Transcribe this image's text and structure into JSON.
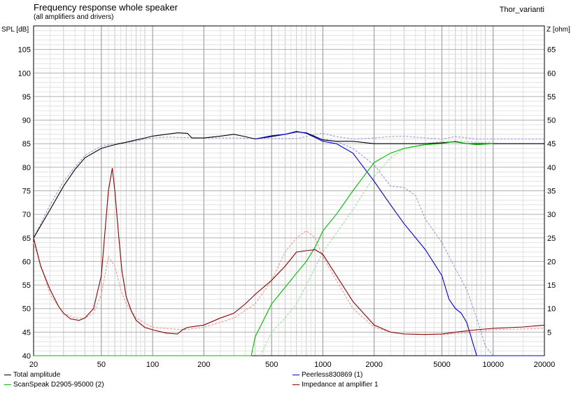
{
  "chart_data": {
    "type": "line",
    "title": "Frequency response whole speaker",
    "subtitle": "(all amplifiers and drivers)",
    "corner_label": "Thor_varianti",
    "x_scale": "log",
    "xlim": [
      20,
      20000
    ],
    "x_ticks": [
      20,
      50,
      100,
      200,
      500,
      1000,
      2000,
      5000,
      10000,
      20000
    ],
    "ylabel_left": "SPL [dB]",
    "ylim_left": [
      40,
      110
    ],
    "y_ticks_left": [
      40,
      45,
      50,
      55,
      60,
      65,
      70,
      75,
      80,
      85,
      90,
      95,
      100,
      105
    ],
    "ylabel_right": "Z [ohm]",
    "ylim_right": [
      0,
      70
    ],
    "y_ticks_right": [
      5,
      10,
      15,
      20,
      25,
      30,
      35,
      40,
      45,
      50,
      55,
      60,
      65
    ],
    "grid": true,
    "legend": [
      {
        "name": "Total amplitude",
        "color": "#000000"
      },
      {
        "name": "Peerless830869 (1)",
        "color": "#0000dd"
      },
      {
        "name": "ScanSpeak D2905-95000 (2)",
        "color": "#00bb00"
      },
      {
        "name": "Impedance at amplifier 1",
        "color": "#8b0000"
      }
    ],
    "series": [
      {
        "name": "Total amplitude",
        "axis": "left",
        "color": "#000000",
        "style": "solid",
        "x": [
          20,
          25,
          30,
          35,
          40,
          50,
          60,
          70,
          80,
          90,
          100,
          120,
          140,
          160,
          170,
          200,
          250,
          300,
          350,
          400,
          500,
          600,
          700,
          800,
          1000,
          1200,
          1500,
          2000,
          2500,
          3000,
          4000,
          5000,
          6000,
          7000,
          8000,
          10000,
          15000,
          20000
        ],
        "y": [
          65,
          71,
          76,
          79.5,
          82,
          84,
          84.8,
          85.3,
          85.8,
          86.2,
          86.6,
          87,
          87.3,
          87.2,
          86.2,
          86.2,
          86.6,
          87,
          86.5,
          86,
          86.5,
          87,
          87.5,
          87.3,
          85.8,
          85.5,
          85.5,
          85,
          85,
          85,
          85,
          85.2,
          85.4,
          85,
          85,
          85,
          85,
          85
        ]
      },
      {
        "name": "Peerless830869 (1)",
        "axis": "left",
        "color": "#0000dd",
        "style": "solid",
        "x": [
          400,
          500,
          600,
          700,
          800,
          1000,
          1200,
          1500,
          2000,
          2500,
          3000,
          4000,
          5000,
          5500,
          6000,
          6500,
          7000,
          8000,
          9000,
          10000,
          12000,
          15000,
          20000
        ],
        "y": [
          86,
          86.7,
          87,
          87.6,
          87.2,
          85.5,
          85,
          83,
          77,
          72,
          68,
          62.5,
          57,
          52,
          50,
          49,
          47,
          40,
          40,
          40,
          40,
          40,
          40
        ]
      },
      {
        "name": "ScanSpeak D2905-95000 (2)",
        "axis": "left",
        "color": "#00bb00",
        "style": "solid",
        "x": [
          20,
          100,
          300,
          380,
          400,
          500,
          600,
          700,
          800,
          900,
          1000,
          1200,
          1500,
          2000,
          2500,
          3000,
          4000,
          5000,
          6000,
          7000,
          8000,
          10000
        ],
        "y": [
          40,
          40,
          40,
          40,
          44,
          51,
          54.5,
          57.5,
          60,
          63,
          66.5,
          70,
          75,
          81,
          83,
          84,
          84.8,
          85,
          85.5,
          85,
          84.8,
          85
        ]
      },
      {
        "name": "Impedance at amplifier 1",
        "axis": "right",
        "color": "#8b0000",
        "style": "solid",
        "x": [
          20,
          22,
          25,
          28,
          30,
          33,
          37,
          40,
          45,
          50,
          55,
          58,
          60,
          63,
          66,
          70,
          75,
          80,
          90,
          100,
          120,
          140,
          150,
          160,
          200,
          250,
          300,
          350,
          400,
          500,
          600,
          700,
          800,
          900,
          1000,
          1200,
          1500,
          2000,
          2500,
          3000,
          4000,
          5000,
          6000,
          8000,
          10000,
          15000,
          20000
        ],
        "y": [
          25,
          19,
          14,
          10.5,
          9,
          7.8,
          7.5,
          8,
          10,
          17,
          35,
          39.8,
          35,
          26,
          18,
          12.5,
          9.5,
          7.5,
          6,
          5.5,
          4.8,
          4.6,
          5.5,
          6,
          6.5,
          8,
          9,
          11,
          13,
          16,
          19,
          22,
          22.3,
          22.5,
          21.5,
          17,
          11.5,
          6.5,
          5,
          4.6,
          4.5,
          4.6,
          5,
          5.5,
          5.8,
          6.1,
          6.5
        ]
      },
      {
        "name": "Total amplitude (reference)",
        "axis": "left",
        "color": "#9999dd",
        "style": "dashed",
        "x": [
          20,
          25,
          30,
          35,
          40,
          50,
          60,
          70,
          80,
          90,
          100,
          120,
          150,
          200,
          300,
          400,
          500,
          700,
          800,
          900,
          1000,
          1200,
          1500,
          2000,
          2500,
          3000,
          4000,
          5000,
          6000,
          8000,
          10000,
          15000,
          20000
        ],
        "y": [
          65,
          72,
          77,
          80,
          82.5,
          84.5,
          85,
          85.3,
          85.5,
          86,
          86.2,
          86.4,
          86.3,
          86.2,
          86.2,
          86.1,
          86.1,
          86.1,
          86.5,
          87,
          87.2,
          86.5,
          86,
          86.2,
          86.5,
          86.6,
          86.2,
          86,
          86.5,
          86,
          86,
          86,
          86
        ]
      },
      {
        "name": "Peerless830869 (reference)",
        "axis": "left",
        "color": "#9999dd",
        "style": "dashed",
        "x": [
          1000,
          1200,
          1500,
          2000,
          2500,
          3000,
          3500,
          4000,
          5000,
          6000,
          7000,
          8000,
          9000,
          10000
        ],
        "y": [
          86,
          85.5,
          84,
          80.5,
          76,
          75.7,
          74,
          69,
          64,
          58.5,
          54,
          48,
          42,
          40
        ]
      },
      {
        "name": "ScanSpeak D2905-95000 (reference)",
        "axis": "left",
        "color": "#99dd99",
        "style": "dashed",
        "x": [
          430,
          500,
          600,
          700,
          800,
          1000,
          1200,
          1500,
          2000,
          2500,
          3000,
          4000,
          5000,
          6000,
          8000,
          10000
        ],
        "y": [
          40,
          45,
          48,
          51,
          55,
          62,
          66,
          71,
          78,
          82,
          84,
          85,
          85.5,
          85.5,
          85.3,
          85.3
        ]
      },
      {
        "name": "Impedance (reference)",
        "axis": "right",
        "color": "#ee9999",
        "style": "dashed",
        "x": [
          20,
          25,
          30,
          35,
          40,
          45,
          50,
          55,
          60,
          65,
          70,
          80,
          100,
          150,
          200,
          300,
          400,
          500,
          600,
          700,
          800,
          900,
          1000,
          1200,
          1500,
          2000,
          2500,
          3000,
          4000,
          5000,
          8000,
          10000,
          20000
        ],
        "y": [
          24,
          13,
          9,
          8,
          8,
          9,
          13,
          21,
          19,
          14,
          11,
          8,
          6,
          5.5,
          6,
          8,
          11,
          16,
          22,
          25,
          26.5,
          25,
          21,
          16,
          10,
          6,
          5,
          4.6,
          4.5,
          4.5,
          5,
          5.5,
          5.8
        ]
      }
    ]
  }
}
